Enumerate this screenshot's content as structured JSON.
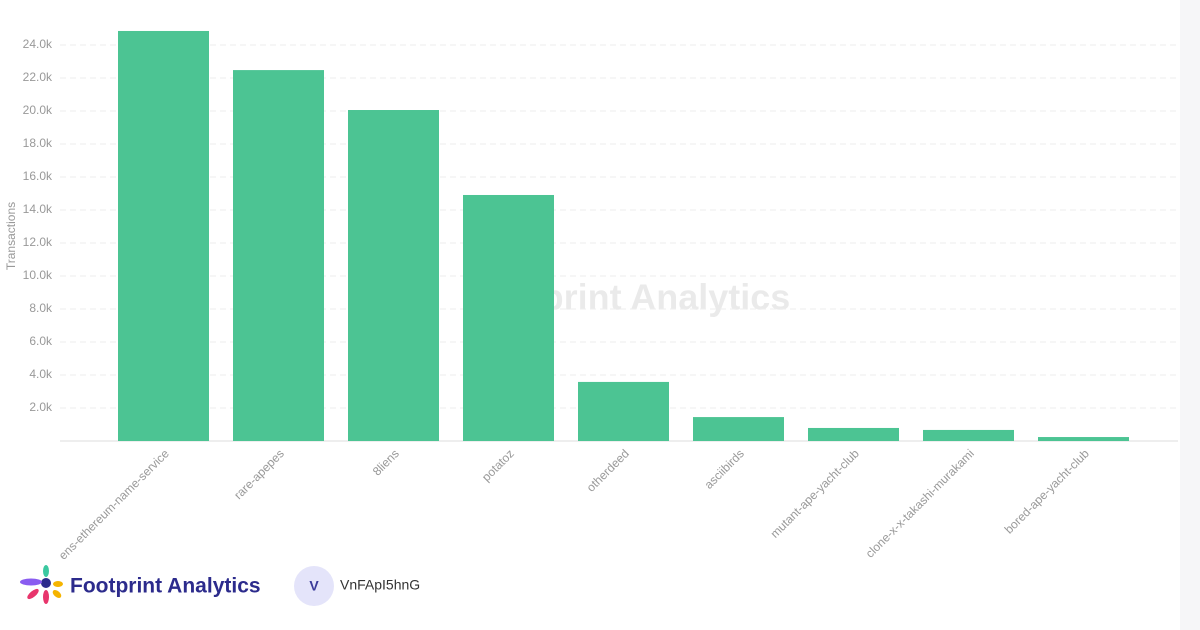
{
  "chart_data": {
    "type": "bar",
    "watermark": "Footprint Analytics",
    "y_label": "Transactions",
    "categories": [
      "ens-ethereum-name-service",
      "rare-apepes",
      "8liens",
      "potatoz",
      "otherdeed",
      "asciibirds",
      "mutant-ape-yacht-club",
      "clone-x-x-takashi-murakami",
      "bored-ape-yacht-club"
    ],
    "values": [
      24850,
      22480,
      20060,
      14910,
      3580,
      1450,
      790,
      670,
      240
    ],
    "color": "#4cc493",
    "ylim": [
      0,
      25000
    ],
    "yticks": [
      {
        "value": 2000,
        "label": "2.0k"
      },
      {
        "value": 4000,
        "label": "4.0k"
      },
      {
        "value": 6000,
        "label": "6.0k"
      },
      {
        "value": 8000,
        "label": "8.0k"
      },
      {
        "value": 10000,
        "label": "10.0k"
      },
      {
        "value": 12000,
        "label": "12.0k"
      },
      {
        "value": 14000,
        "label": "14.0k"
      },
      {
        "value": 16000,
        "label": "16.0k"
      },
      {
        "value": 18000,
        "label": "18.0k"
      },
      {
        "value": 20000,
        "label": "20.0k"
      },
      {
        "value": 22000,
        "label": "22.0k"
      },
      {
        "value": 24000,
        "label": "24.0k"
      }
    ],
    "grid": true
  },
  "footer": {
    "brand": "Footprint Analytics",
    "avatar": "V",
    "user": "VnFApI5hnG"
  }
}
